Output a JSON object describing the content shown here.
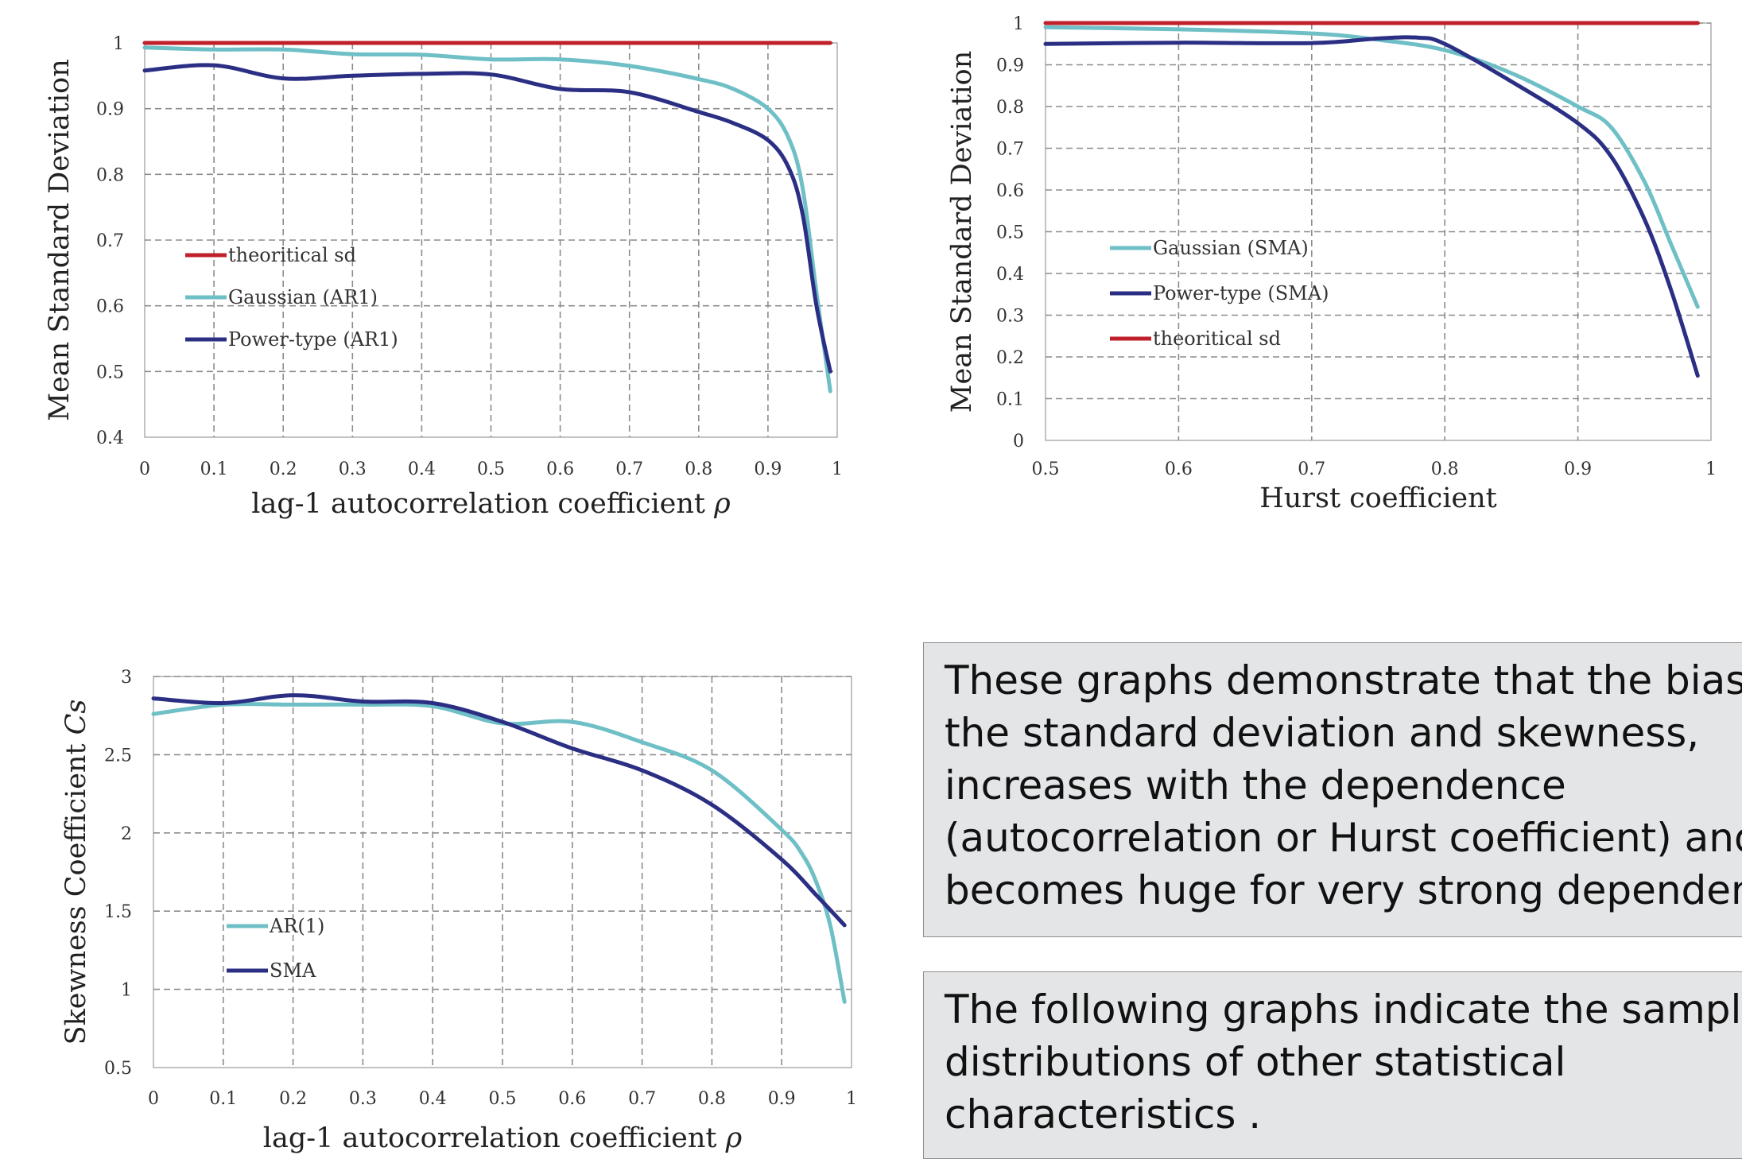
{
  "colors": {
    "theoretical": "#c0202a",
    "gaussian": "#6fbfc7",
    "power": "#2b2f84",
    "grid": "#8c8c8c",
    "box_bg": "#e4e5e7",
    "box_border": "#8d8d8d"
  },
  "chart_data": [
    {
      "type": "line",
      "xlabel": "lag-1 autocorrelation coefficient",
      "xlabel_symbol": "ρ",
      "ylabel": "Mean Standard Deviation",
      "xlim": [
        0,
        1
      ],
      "ylim": [
        0.4,
        1
      ],
      "xticks": [
        0,
        0.1,
        0.2,
        0.3,
        0.4,
        0.5,
        0.6,
        0.7,
        0.8,
        0.9,
        1
      ],
      "xtick_labels": [
        "0",
        "0.1",
        "0.2",
        "0.3",
        "0.4",
        "0.5",
        "0.6",
        "0.7",
        "0.8",
        "0.9",
        "1"
      ],
      "yticks": [
        0.4,
        0.5,
        0.6,
        0.7,
        0.8,
        0.9,
        1
      ],
      "ytick_labels": [
        "0.4",
        "0.5",
        "0.6",
        "0.7",
        "0.8",
        "0.9",
        "1"
      ],
      "grid": true,
      "legend_position": "lower-left",
      "series": [
        {
          "name": "theoritical sd",
          "color_key": "theoretical",
          "x": [
            0,
            0.2,
            0.4,
            0.6,
            0.8,
            0.99
          ],
          "values": [
            1,
            1,
            1,
            1,
            1,
            1
          ]
        },
        {
          "name": "Gaussian (AR1)",
          "color_key": "gaussian",
          "x": [
            0,
            0.1,
            0.2,
            0.3,
            0.4,
            0.5,
            0.6,
            0.7,
            0.8,
            0.85,
            0.9,
            0.93,
            0.95,
            0.97,
            0.99
          ],
          "values": [
            0.993,
            0.99,
            0.99,
            0.983,
            0.982,
            0.975,
            0.975,
            0.965,
            0.945,
            0.93,
            0.9,
            0.855,
            0.78,
            0.62,
            0.47
          ]
        },
        {
          "name": "Power-type (AR1)",
          "color_key": "power",
          "x": [
            0,
            0.1,
            0.2,
            0.3,
            0.4,
            0.5,
            0.6,
            0.7,
            0.8,
            0.85,
            0.9,
            0.93,
            0.95,
            0.97,
            0.99
          ],
          "values": [
            0.958,
            0.966,
            0.946,
            0.95,
            0.953,
            0.952,
            0.93,
            0.925,
            0.895,
            0.878,
            0.852,
            0.81,
            0.74,
            0.6,
            0.5
          ]
        }
      ]
    },
    {
      "type": "line",
      "xlabel": "Hurst coefficient",
      "ylabel": "Mean Standard Deviation",
      "xlim": [
        0.5,
        1
      ],
      "ylim": [
        0,
        1
      ],
      "xticks": [
        0.5,
        0.6,
        0.7,
        0.8,
        0.9,
        1
      ],
      "xtick_labels": [
        "0.5",
        "0.6",
        "0.7",
        "0.8",
        "0.9",
        "1"
      ],
      "yticks": [
        0,
        0.1,
        0.2,
        0.3,
        0.4,
        0.5,
        0.6,
        0.7,
        0.8,
        0.9,
        1
      ],
      "ytick_labels": [
        "0",
        "0.1",
        "0.2",
        "0.3",
        "0.4",
        "0.5",
        "0.6",
        "0.7",
        "0.8",
        "0.9",
        "1"
      ],
      "grid": true,
      "legend_position": "center-left",
      "series": [
        {
          "name": "Gaussian (SMA)",
          "color_key": "gaussian",
          "x": [
            0.5,
            0.6,
            0.7,
            0.75,
            0.8,
            0.85,
            0.9,
            0.925,
            0.95,
            0.97,
            0.99
          ],
          "values": [
            0.99,
            0.985,
            0.975,
            0.96,
            0.935,
            0.88,
            0.8,
            0.75,
            0.62,
            0.47,
            0.32
          ]
        },
        {
          "name": "Power-type (SMA)",
          "color_key": "power",
          "x": [
            0.5,
            0.6,
            0.7,
            0.75,
            0.78,
            0.8,
            0.85,
            0.9,
            0.925,
            0.95,
            0.97,
            0.99
          ],
          "values": [
            0.95,
            0.953,
            0.952,
            0.963,
            0.965,
            0.95,
            0.86,
            0.76,
            0.68,
            0.53,
            0.36,
            0.155
          ]
        },
        {
          "name": "theoritical sd",
          "color_key": "theoretical",
          "x": [
            0.5,
            0.7,
            0.9,
            0.99
          ],
          "values": [
            1,
            1,
            1,
            1
          ]
        }
      ]
    },
    {
      "type": "line",
      "xlabel": "lag-1 autocorrelation coefficient",
      "xlabel_symbol": "ρ",
      "ylabel": "Skewness Coefficient",
      "ylabel_symbol": "Cs",
      "xlim": [
        0,
        1
      ],
      "ylim": [
        0.5,
        3
      ],
      "xticks": [
        0,
        0.1,
        0.2,
        0.3,
        0.4,
        0.5,
        0.6,
        0.7,
        0.8,
        0.9,
        1
      ],
      "xtick_labels": [
        "0",
        "0.1",
        "0.2",
        "0.3",
        "0.4",
        "0.5",
        "0.6",
        "0.7",
        "0.8",
        "0.9",
        "1"
      ],
      "yticks": [
        0.5,
        1,
        1.5,
        2,
        2.5,
        3
      ],
      "ytick_labels": [
        "0.5",
        "1",
        "1.5",
        "2",
        "2.5",
        "3"
      ],
      "grid": true,
      "legend_position": "lower-left",
      "series": [
        {
          "name": "AR(1)",
          "color_key": "gaussian",
          "x": [
            0,
            0.1,
            0.2,
            0.3,
            0.4,
            0.5,
            0.6,
            0.7,
            0.8,
            0.9,
            0.93,
            0.95,
            0.97,
            0.99
          ],
          "values": [
            2.76,
            2.82,
            2.82,
            2.82,
            2.81,
            2.7,
            2.71,
            2.58,
            2.4,
            2.02,
            1.86,
            1.68,
            1.4,
            0.92
          ]
        },
        {
          "name": "SMA",
          "color_key": "power",
          "x": [
            0,
            0.1,
            0.2,
            0.3,
            0.4,
            0.5,
            0.6,
            0.7,
            0.8,
            0.9,
            0.95,
            0.99
          ],
          "values": [
            2.86,
            2.83,
            2.88,
            2.84,
            2.83,
            2.71,
            2.54,
            2.4,
            2.18,
            1.83,
            1.6,
            1.41
          ]
        }
      ]
    }
  ],
  "text_boxes": [
    {
      "lines": [
        "These graphs demonstrate that the bias in",
        "the standard deviation and skewness,",
        "increases with the dependence",
        "(autocorrelation or Hurst coefficient) and",
        "becomes huge for very strong dependence."
      ]
    },
    {
      "lines": [
        "The following graphs indicate the sampling",
        "distributions of other statistical",
        "characteristics ."
      ]
    }
  ]
}
